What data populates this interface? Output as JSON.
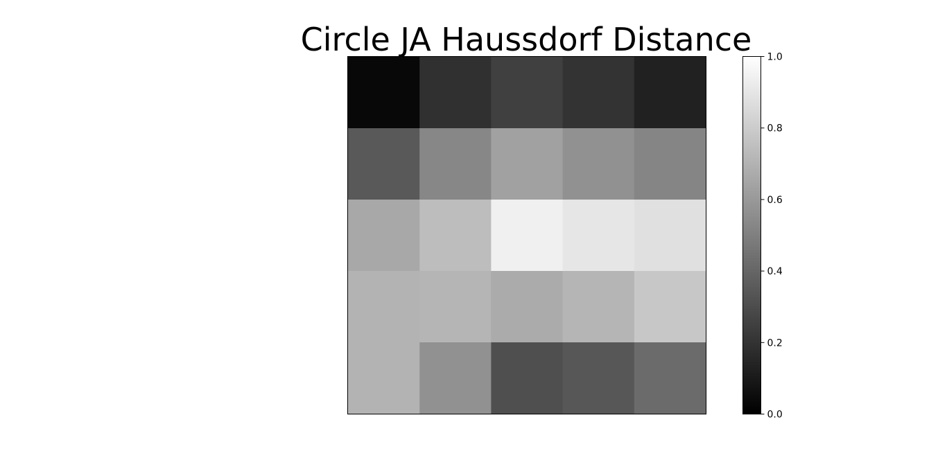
{
  "chart_data": {
    "type": "heatmap",
    "title": "Circle JA Haussdorf Distance",
    "colormap": "gray",
    "rows": 5,
    "cols": 5,
    "values": [
      [
        0.03,
        0.19,
        0.25,
        0.2,
        0.13
      ],
      [
        0.35,
        0.53,
        0.63,
        0.57,
        0.52
      ],
      [
        0.66,
        0.74,
        0.94,
        0.9,
        0.88
      ],
      [
        0.7,
        0.71,
        0.67,
        0.71,
        0.78
      ],
      [
        0.7,
        0.57,
        0.31,
        0.34,
        0.42
      ]
    ],
    "colorbar": {
      "range": [
        0.0,
        1.0
      ],
      "ticks": [
        "0.0",
        "0.2",
        "0.4",
        "0.6",
        "0.8",
        "1.0"
      ]
    },
    "xticks_visible": false,
    "yticks_visible": false
  }
}
